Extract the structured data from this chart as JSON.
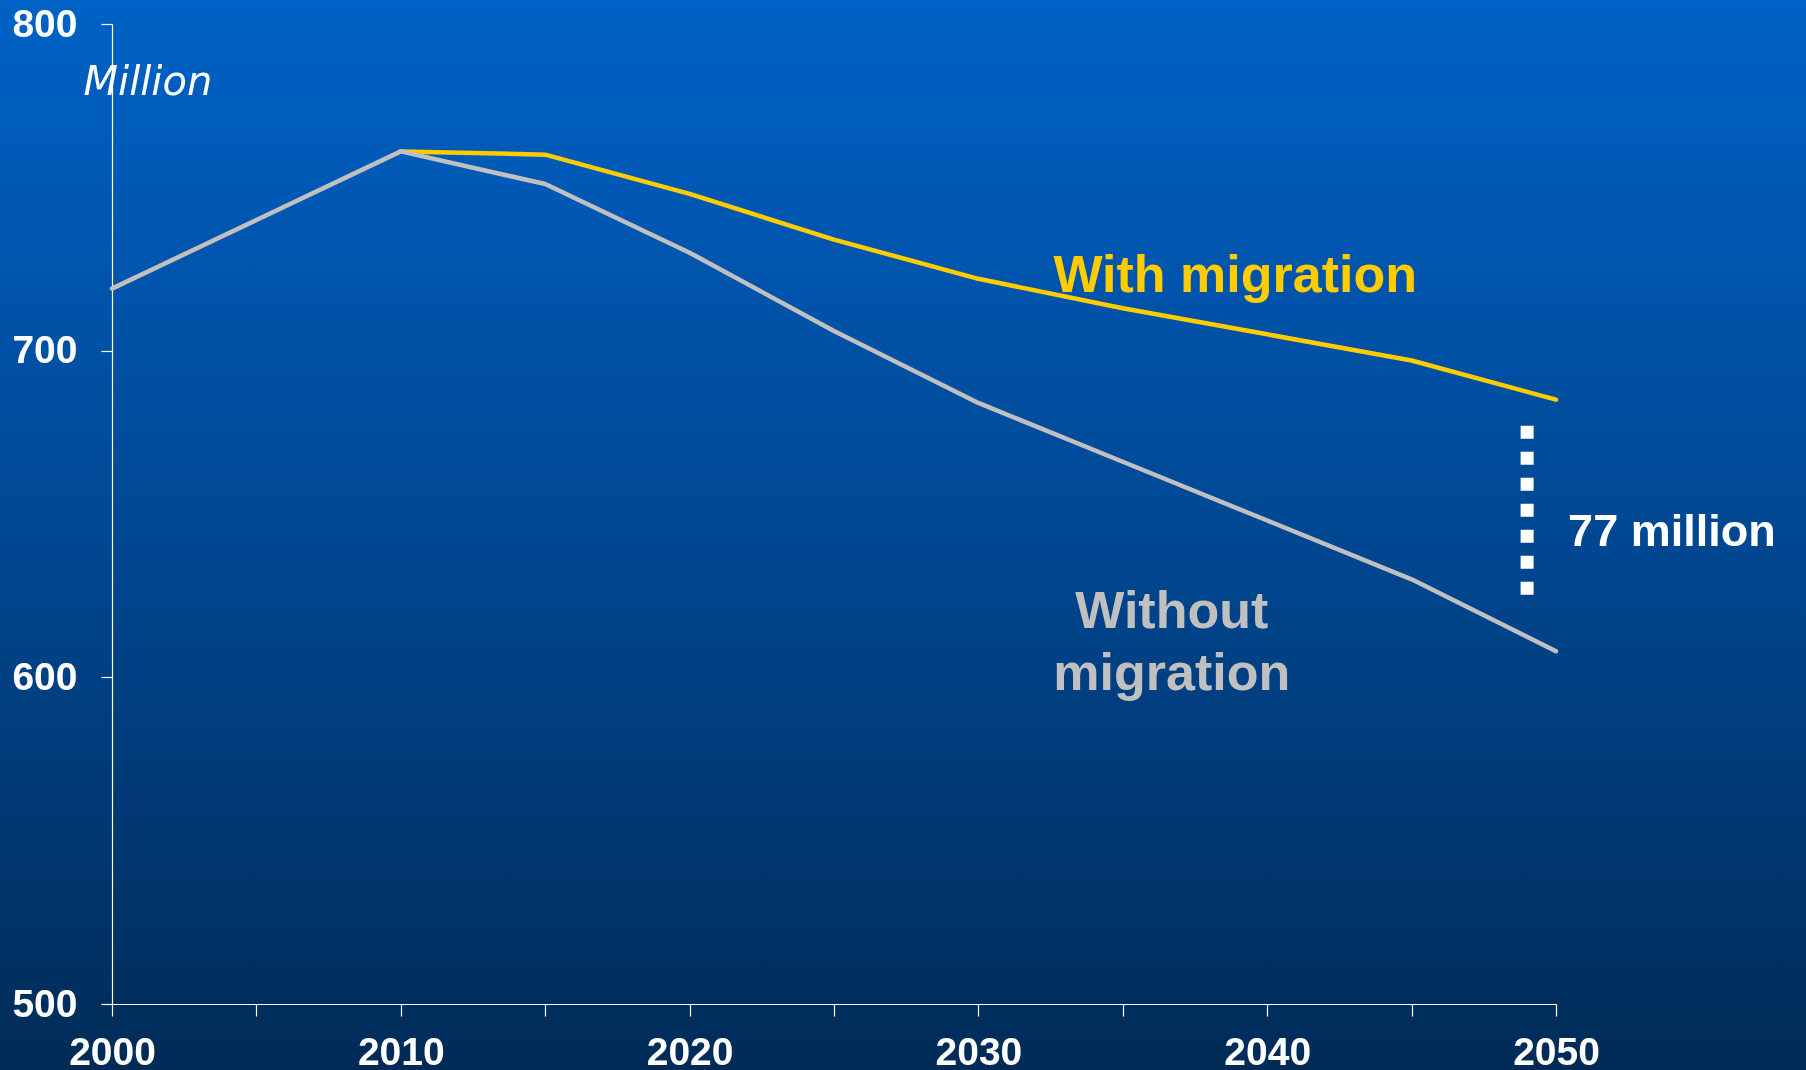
{
  "chart_data": {
    "type": "line",
    "ylabel": "Million",
    "x": [
      2000,
      2005,
      2010,
      2015,
      2020,
      2025,
      2030,
      2035,
      2040,
      2045,
      2050
    ],
    "series": [
      {
        "name": "With migration",
        "color": "#ffcc00",
        "values": [
          null,
          null,
          761,
          760,
          748,
          734,
          722,
          713,
          705,
          697,
          685
        ]
      },
      {
        "name": "Without migration",
        "color": "#c0c0c0",
        "values": [
          719,
          740,
          761,
          751,
          730,
          706,
          684,
          666,
          648,
          630,
          608
        ]
      },
      {
        "color": "#ffffff",
        "line_style": "dotted",
        "x": [
          2049,
          2049
        ],
        "values": [
          677,
          625
        ]
      }
    ],
    "xlim": [
      2000,
      2050
    ],
    "ylim": [
      500,
      800
    ],
    "xticks": [
      2000,
      {
        "value": 2005,
        "label": null
      },
      2010,
      {
        "value": 2015,
        "label": null
      },
      2020,
      {
        "value": 2025,
        "label": null
      },
      2030,
      {
        "value": 2035,
        "label": null
      },
      2040,
      {
        "value": 2045,
        "label": null
      },
      2050
    ],
    "yticks": [
      500,
      600,
      700,
      800
    ],
    "annotations": [
      "77 million"
    ],
    "grid": false,
    "legend": false,
    "marker": "none",
    "line_style": "solid"
  }
}
